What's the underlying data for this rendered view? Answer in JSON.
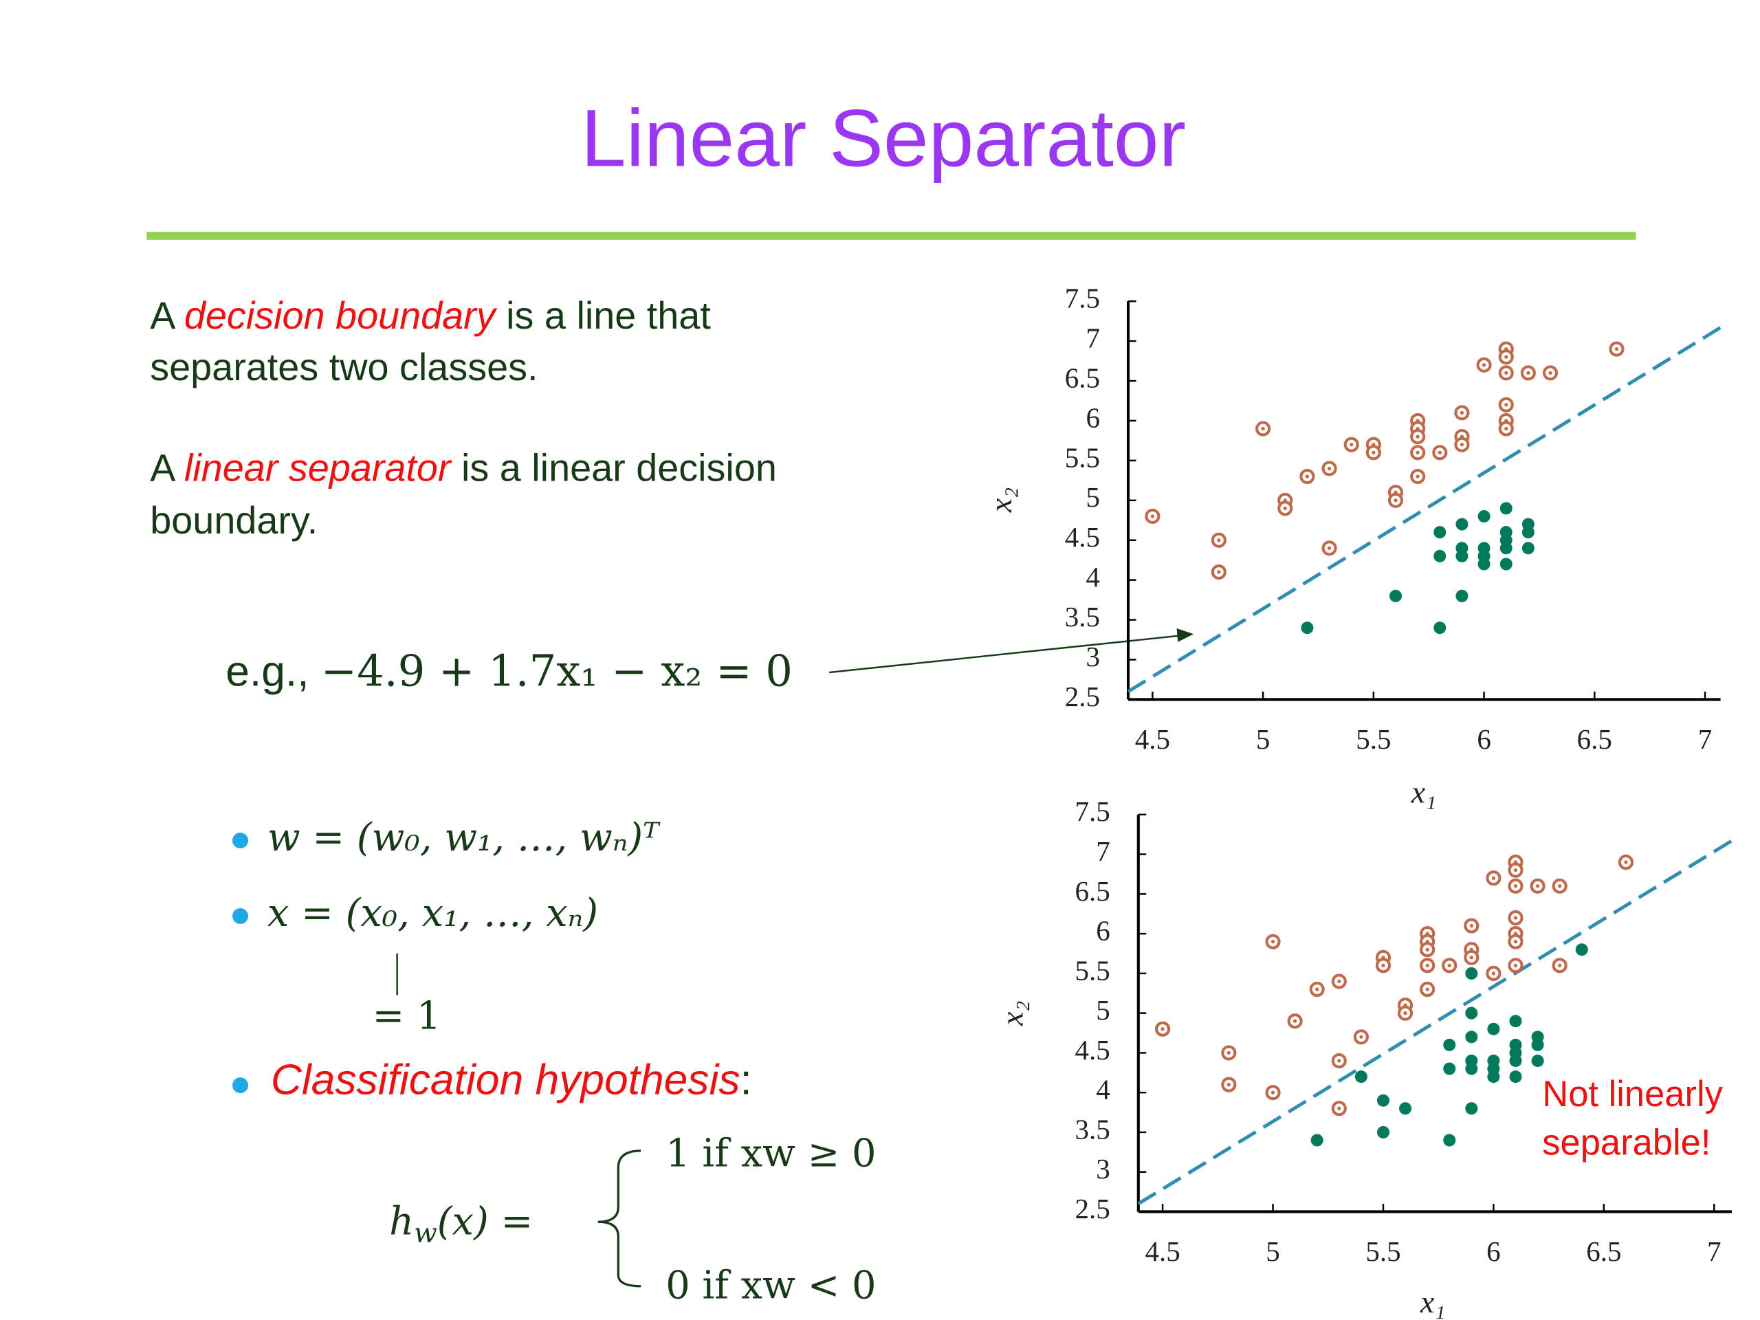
{
  "title": "Linear Separator",
  "definitions": [
    [
      [
        "A ",
        "decision boundary",
        " is a line that"
      ],
      [
        "separates two classes."
      ]
    ],
    [
      [
        "A ",
        "linear separator",
        " is a linear decision"
      ],
      [
        "boundary."
      ]
    ]
  ],
  "example": [
    "e.g., ",
    "−4.9 + 1.7x₁ − x₂ = 0"
  ],
  "bullets": [
    "w = (w₀, w₁, …, wₙ)ᵀ",
    "x = (x₀, x₁, …, xₙ)",
    [
      "Classification hypothesis",
      ":"
    ]
  ],
  "x0_note": "= 1",
  "hypothesis": {
    "lhs": "h",
    "sub": "w",
    "arg": "(x) =",
    "cases": [
      "1 if xw ≥ 0",
      "0 if xw < 0"
    ]
  },
  "chart_data": [
    {
      "type": "scatter",
      "xlabel": "x₁",
      "ylabel": "x₂",
      "xlim": [
        4.39,
        7.07
      ],
      "ylim": [
        2.5,
        7.5
      ],
      "xticks": [
        4.5,
        5,
        5.5,
        6,
        6.5,
        7
      ],
      "yticks": [
        2.5,
        3,
        3.5,
        4,
        4.5,
        5,
        5.5,
        6,
        6.5,
        7,
        7.5
      ],
      "series": [
        {
          "color": "#c0694a",
          "marker": "ring",
          "x": [
            4.5,
            4.8,
            4.8,
            5.0,
            5.1,
            5.1,
            5.2,
            5.3,
            5.3,
            5.4,
            5.5,
            5.5,
            5.6,
            5.6,
            5.7,
            5.7,
            5.7,
            5.7,
            5.7,
            5.8,
            5.9,
            5.9,
            5.9,
            6.0,
            6.1,
            6.1,
            6.1,
            6.1,
            6.1,
            6.1,
            6.2,
            6.3,
            6.6
          ],
          "values": [
            4.8,
            4.5,
            4.1,
            5.9,
            5.0,
            4.9,
            5.3,
            5.4,
            4.4,
            5.7,
            5.7,
            5.6,
            5.1,
            5.0,
            6.0,
            5.9,
            5.8,
            5.6,
            5.3,
            5.6,
            6.1,
            5.8,
            5.7,
            6.7,
            6.9,
            6.8,
            6.6,
            6.2,
            6.0,
            5.9,
            6.6,
            6.6,
            6.9
          ]
        },
        {
          "color": "#007a5a",
          "marker": "dot",
          "x": [
            5.2,
            5.6,
            5.8,
            5.8,
            5.8,
            5.9,
            5.9,
            5.9,
            5.9,
            6.0,
            6.0,
            6.0,
            6.0,
            6.1,
            6.1,
            6.1,
            6.1,
            6.1,
            6.2,
            6.2,
            6.2
          ],
          "values": [
            3.4,
            3.8,
            4.6,
            4.3,
            3.4,
            4.7,
            4.4,
            4.3,
            3.8,
            4.8,
            4.4,
            4.3,
            4.2,
            4.9,
            4.6,
            4.5,
            4.4,
            4.2,
            4.7,
            4.6,
            4.4
          ]
        }
      ],
      "lines": [
        {
          "color": "#2e8db0",
          "x": [
            4.39,
            7.07
          ],
          "values": [
            2.6,
            7.17
          ]
        }
      ]
    },
    {
      "type": "scatter",
      "xlabel": "x₁",
      "ylabel": "x₂",
      "xlim": [
        4.39,
        7.08
      ],
      "ylim": [
        2.5,
        7.5
      ],
      "xticks": [
        4.5,
        5,
        5.5,
        6,
        6.5,
        7
      ],
      "yticks": [
        2.5,
        3,
        3.5,
        4,
        4.5,
        5,
        5.5,
        6,
        6.5,
        7,
        7.5
      ],
      "annotation": [
        "Not linearly",
        "separable!"
      ],
      "series": [
        {
          "color": "#c0694a",
          "marker": "ring",
          "x": [
            4.5,
            4.8,
            4.8,
            5.0,
            5.0,
            5.1,
            5.2,
            5.3,
            5.3,
            5.3,
            5.4,
            5.5,
            5.5,
            5.6,
            5.6,
            5.7,
            5.7,
            5.7,
            5.7,
            5.7,
            5.8,
            5.9,
            5.9,
            5.9,
            6.0,
            6.0,
            6.1,
            6.1,
            6.1,
            6.1,
            6.1,
            6.1,
            6.1,
            6.2,
            6.3,
            6.3,
            6.6
          ],
          "values": [
            4.8,
            4.5,
            4.1,
            5.9,
            4.0,
            4.9,
            5.3,
            5.4,
            4.4,
            3.8,
            4.7,
            5.7,
            5.6,
            5.1,
            5.0,
            6.0,
            5.9,
            5.8,
            5.6,
            5.3,
            5.6,
            6.1,
            5.8,
            5.7,
            5.5,
            6.7,
            6.9,
            6.8,
            6.6,
            6.2,
            6.0,
            5.9,
            5.6,
            6.6,
            6.6,
            5.6,
            6.9
          ]
        },
        {
          "color": "#007a5a",
          "marker": "dot",
          "x": [
            5.2,
            5.4,
            5.5,
            5.5,
            5.6,
            5.8,
            5.8,
            5.8,
            5.9,
            5.9,
            5.9,
            5.9,
            5.9,
            5.9,
            6.0,
            6.0,
            6.0,
            6.0,
            6.1,
            6.1,
            6.1,
            6.1,
            6.1,
            6.2,
            6.2,
            6.2,
            6.4
          ],
          "values": [
            3.4,
            4.2,
            3.9,
            3.5,
            3.8,
            4.6,
            4.3,
            3.4,
            5.5,
            5.0,
            4.7,
            4.4,
            4.3,
            3.8,
            4.8,
            4.4,
            4.3,
            4.2,
            4.9,
            4.6,
            4.5,
            4.4,
            4.2,
            4.7,
            4.6,
            4.4,
            5.8
          ]
        }
      ],
      "lines": [
        {
          "color": "#2e8db0",
          "x": [
            4.39,
            7.08
          ],
          "values": [
            2.6,
            7.17
          ]
        }
      ]
    }
  ]
}
